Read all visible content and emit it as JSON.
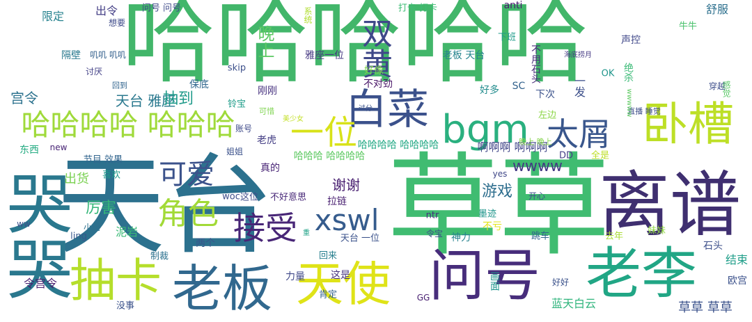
{
  "words": [
    {
      "text": "哈哈哈哈哈",
      "color": "#42b66a"
    },
    {
      "text": "天台",
      "color": "#2c718e"
    },
    {
      "text": "草草",
      "color": "#40bc71"
    },
    {
      "text": "离谱",
      "color": "#3f2f70"
    },
    {
      "text": "哭哭",
      "color": "#2a788e"
    },
    {
      "text": "老李",
      "color": "#21a685"
    },
    {
      "text": "问号",
      "color": "#472d7b"
    },
    {
      "text": "天使",
      "color": "#dfe318"
    },
    {
      "text": "老板",
      "color": "#31688e"
    },
    {
      "text": "抽卡",
      "color": "#b5de2b"
    },
    {
      "text": "卧槽",
      "color": "#bddf26"
    },
    {
      "text": "白菜",
      "color": "#3b518b"
    },
    {
      "text": "双黄",
      "color": "#3f4889"
    },
    {
      "text": "一位",
      "color": "#d8e219"
    },
    {
      "text": "bgm",
      "color": "#2ab07f"
    },
    {
      "text": "太屑",
      "color": "#39568c"
    },
    {
      "text": "哈哈哈哈 哈哈哈",
      "color": "#9fda3a"
    },
    {
      "text": "接受",
      "color": "#482677"
    },
    {
      "text": "xswl",
      "color": "#365c8d"
    },
    {
      "text": "角色",
      "color": "#a2da37"
    },
    {
      "text": "可爱",
      "color": "#3b528b"
    },
    {
      "text": "天台 雅座",
      "color": "#2a788e"
    },
    {
      "text": "抽到",
      "color": "#1f9a8a"
    },
    {
      "text": "wwww",
      "color": "#443a83"
    },
    {
      "text": "啊啊啊 啊啊啊",
      "color": "#404688"
    },
    {
      "text": "厉害",
      "color": "#35b779"
    },
    {
      "text": "出货",
      "color": "#7ad151"
    },
    {
      "text": "谢谢",
      "color": "#481f70"
    },
    {
      "text": "游戏",
      "color": "#2e6e8e"
    },
    {
      "text": "哈哈哈哈 哈哈哈哈",
      "color": "#22a884"
    },
    {
      "text": "哈哈哈 哈哈哈哈",
      "color": "#5ec962"
    },
    {
      "text": "宫令",
      "color": "#2c728e"
    },
    {
      "text": "晚上",
      "color": "#5cc863"
    },
    {
      "text": "雅座一位",
      "color": "#453781"
    },
    {
      "text": "老板 天台",
      "color": "#25848e"
    },
    {
      "text": "打卡 打卡",
      "color": "#3dbc74"
    },
    {
      "text": "问号 问号",
      "color": "#3e4a89"
    },
    {
      "text": "出令",
      "color": "#433e85"
    },
    {
      "text": "限定",
      "color": "#26828e"
    },
    {
      "text": "anti",
      "color": "#481c6e"
    },
    {
      "text": "声控",
      "color": "#3f4788"
    },
    {
      "text": "舒服",
      "color": "#2d708e"
    },
    {
      "text": "牛牛",
      "color": "#4ac16d"
    },
    {
      "text": "下班",
      "color": "#1e9b8a"
    },
    {
      "text": "不用石头",
      "color": "#472a7a"
    },
    {
      "text": "海底捞月",
      "color": "#443983"
    },
    {
      "text": "隔壁",
      "color": "#29798e"
    },
    {
      "text": "讨厌",
      "color": "#424086"
    },
    {
      "text": "好像",
      "color": "#7fd34e"
    },
    {
      "text": "skip",
      "color": "#3c4f8a"
    },
    {
      "text": "保底",
      "color": "#31678e"
    },
    {
      "text": "回到",
      "color": "#32658e"
    },
    {
      "text": "刚刚",
      "color": "#46307e"
    },
    {
      "text": "不对劲",
      "color": "#481467"
    },
    {
      "text": "好多",
      "color": "#228c8d"
    },
    {
      "text": "下次",
      "color": "#3b528b"
    },
    {
      "text": "SC",
      "color": "#33628d"
    },
    {
      "text": "一发",
      "color": "#3c4f8a"
    },
    {
      "text": "OK",
      "color": "#1f958b"
    },
    {
      "text": "绝杀",
      "color": "#3aba76"
    },
    {
      "text": "穿越",
      "color": "#3d4e8a"
    },
    {
      "text": "直播 睡觉",
      "color": "#3d4d8a"
    },
    {
      "text": "感觉",
      "color": "#58c765"
    },
    {
      "text": "铃宝",
      "color": "#1e9c89"
    },
    {
      "text": "账号",
      "color": "#3e4989"
    },
    {
      "text": "可惜",
      "color": "#7ed34f"
    },
    {
      "text": "美少女",
      "color": "#c2df23"
    },
    {
      "text": "老虎",
      "color": "#433d84"
    },
    {
      "text": "姐姐",
      "color": "#3b518b"
    },
    {
      "text": "真的",
      "color": "#482475"
    },
    {
      "text": "东西",
      "color": "#25ab82"
    },
    {
      "text": "节目 效果",
      "color": "#32658e"
    },
    {
      "text": "喜欢",
      "color": "#1f9a8a"
    },
    {
      "text": "左边",
      "color": "#8bd646"
    },
    {
      "text": "晚上 晚上",
      "color": "#84d44b"
    },
    {
      "text": "全是",
      "color": "#bddf26"
    },
    {
      "text": "DD",
      "color": "#433e85"
    },
    {
      "text": "yes",
      "color": "#3f4788"
    },
    {
      "text": "woc",
      "color": "#3d4e8a"
    },
    {
      "text": "这位",
      "color": "#3e4a89"
    },
    {
      "text": "不好意思",
      "color": "#482878"
    },
    {
      "text": "拉链",
      "color": "#481f70"
    },
    {
      "text": "ntr",
      "color": "#462f7e"
    },
    {
      "text": "开心",
      "color": "#3d4e8a"
    },
    {
      "text": "墨迹",
      "color": "#1f958b"
    },
    {
      "text": "不亏",
      "color": "#e2e418"
    },
    {
      "text": "神力",
      "color": "#26828e"
    },
    {
      "text": "去年",
      "color": "#a8db34"
    },
    {
      "text": "跳车",
      "color": "#32648e"
    },
    {
      "text": "妹妹",
      "color": "#90d743"
    },
    {
      "text": "石头",
      "color": "#3c4f8a"
    },
    {
      "text": "结束",
      "color": "#1f9e89"
    },
    {
      "text": "欧宫",
      "color": "#3b518b"
    },
    {
      "text": "草草 草草",
      "color": "#3b528b"
    },
    {
      "text": "蓝天白云",
      "color": "#2fb47c"
    },
    {
      "text": "画面",
      "color": "#1f948c"
    },
    {
      "text": "天台 一位",
      "color": "#3b528b"
    },
    {
      "text": "回来",
      "color": "#277f8e"
    },
    {
      "text": "这是",
      "color": "#46337f"
    },
    {
      "text": "肯定",
      "color": "#33628d"
    },
    {
      "text": "力量",
      "color": "#3f4889"
    },
    {
      "text": "令宫令",
      "color": "#481f70"
    },
    {
      "text": "没事",
      "color": "#3b528b"
    },
    {
      "text": "两个",
      "color": "#39568c"
    },
    {
      "text": "泥岩",
      "color": "#3aba76"
    },
    {
      "text": "制裁",
      "color": "#2c718e"
    },
    {
      "text": "令宝",
      "color": "#3c4f8a"
    },
    {
      "text": "ling",
      "color": "#38588c"
    },
    {
      "text": "小虎",
      "color": "#2d708e"
    },
    {
      "text": "ww",
      "color": "#3b518b"
    },
    {
      "text": "new",
      "color": "#482475"
    },
    {
      "text": "GG",
      "color": "#482071"
    },
    {
      "text": "系统",
      "color": "#b0dd2f"
    },
    {
      "text": "好好",
      "color": "#3b528b"
    },
    {
      "text": "想要",
      "color": "#3e4a89"
    },
    {
      "text": "叽叽 叽叽",
      "color": "#34618d"
    },
    {
      "text": "重",
      "color": "#1fa287"
    },
    {
      "text": "wwwww",
      "color": "#5ec962"
    },
    {
      "text": "过分",
      "color": "#3b528b"
    },
    {
      "text": "可爱",
      "color": "#3b528b"
    }
  ]
}
